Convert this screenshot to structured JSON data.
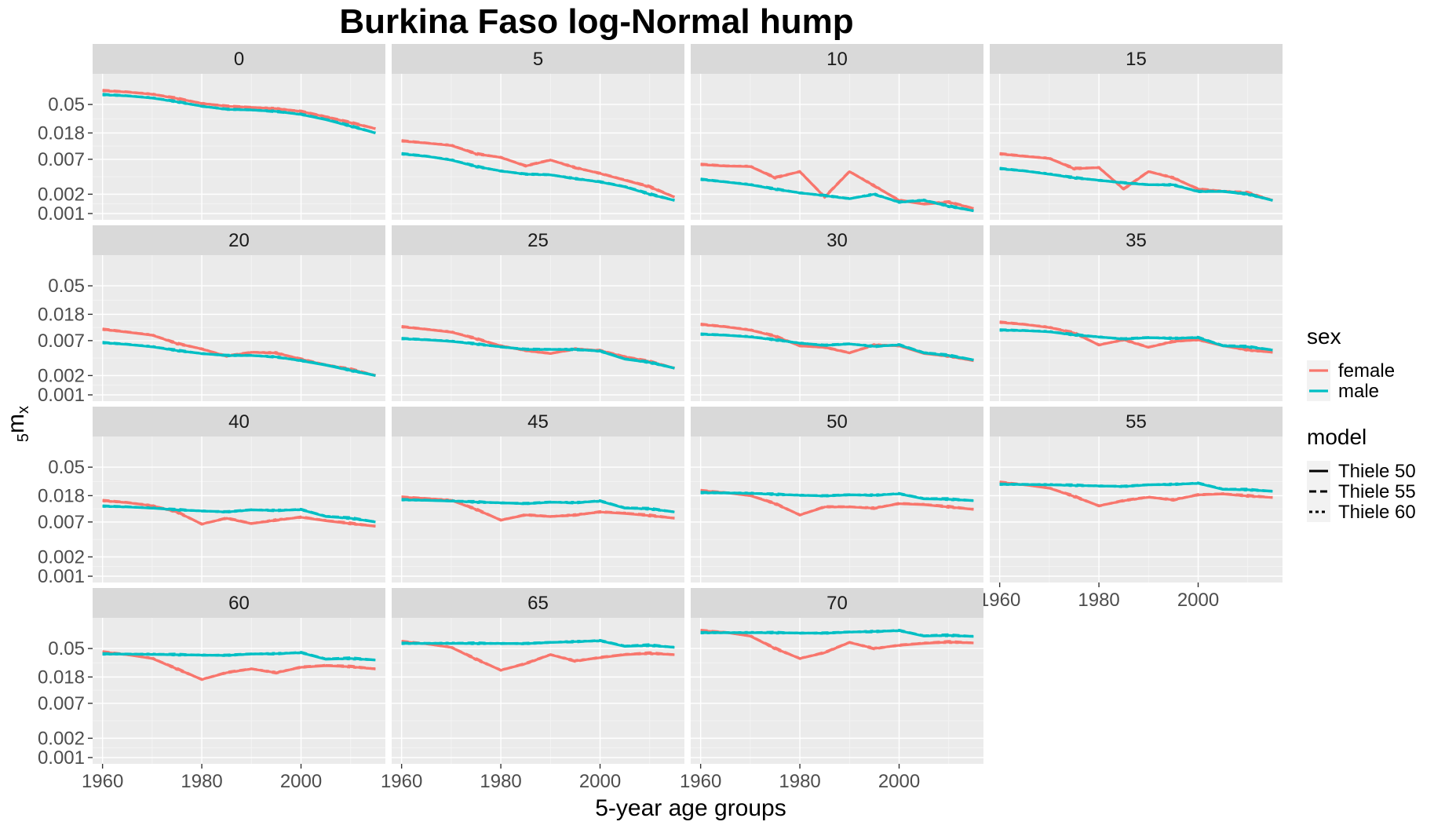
{
  "chart_data": {
    "type": "line",
    "title": "Burkina Faso log-Normal hump",
    "xlabel": "5-year age groups",
    "ylabel": {
      "sub": "5",
      "main": "m",
      "subx": "x"
    },
    "y_scale": "log",
    "ylim": [
      0.001,
      0.12
    ],
    "xlim": [
      1958,
      2017
    ],
    "y_ticks": [
      0.001,
      0.002,
      0.007,
      0.018,
      0.05
    ],
    "y_tick_labels": [
      "0.001",
      "0.002",
      "0.007",
      "0.018",
      "0.05"
    ],
    "x_ticks": [
      1960,
      1980,
      2000
    ],
    "x_tick_labels": [
      "1960",
      "1980",
      "2000"
    ],
    "grid": true,
    "facet_columns": 4,
    "x": [
      1960,
      1965,
      1970,
      1975,
      1980,
      1985,
      1990,
      1995,
      2000,
      2005,
      2010,
      2015
    ],
    "colors": {
      "female": "#F8766D",
      "male": "#00BFC4"
    },
    "legend": {
      "position": "right",
      "sex_title": "sex",
      "sex_entries": [
        "female",
        "male"
      ],
      "model_title": "model",
      "model_entries": [
        "Thiele 50",
        "Thiele 55",
        "Thiele 60"
      ]
    },
    "facets": [
      {
        "label": "0",
        "female": [
          0.082,
          0.078,
          0.072,
          0.062,
          0.052,
          0.047,
          0.045,
          0.043,
          0.039,
          0.032,
          0.026,
          0.021
        ],
        "male": [
          0.071,
          0.068,
          0.063,
          0.055,
          0.047,
          0.042,
          0.041,
          0.039,
          0.035,
          0.029,
          0.023,
          0.018
        ]
      },
      {
        "label": "5",
        "female": [
          0.0135,
          0.0125,
          0.0115,
          0.0085,
          0.0075,
          0.0055,
          0.0068,
          0.0052,
          0.0042,
          0.0033,
          0.0026,
          0.0018
        ],
        "male": [
          0.0085,
          0.0078,
          0.0068,
          0.0054,
          0.0046,
          0.0041,
          0.004,
          0.0035,
          0.0031,
          0.0026,
          0.002,
          0.0016
        ]
      },
      {
        "label": "10",
        "female": [
          0.0058,
          0.0055,
          0.0054,
          0.0036,
          0.0045,
          0.0018,
          0.0045,
          0.0027,
          0.0016,
          0.0014,
          0.0015,
          0.0012
        ],
        "male": [
          0.0034,
          0.0031,
          0.0028,
          0.0024,
          0.0021,
          0.0019,
          0.0017,
          0.002,
          0.0015,
          0.0016,
          0.0013,
          0.0011
        ]
      },
      {
        "label": "15",
        "female": [
          0.0085,
          0.0078,
          0.0072,
          0.005,
          0.0052,
          0.0024,
          0.0045,
          0.0036,
          0.0024,
          0.0022,
          0.0021,
          0.0016
        ],
        "male": [
          0.005,
          0.0046,
          0.0041,
          0.0036,
          0.0033,
          0.003,
          0.0028,
          0.0028,
          0.0022,
          0.0022,
          0.002,
          0.0016
        ]
      },
      {
        "label": "20",
        "female": [
          0.0105,
          0.0095,
          0.0085,
          0.0063,
          0.0052,
          0.004,
          0.0046,
          0.0045,
          0.0036,
          0.0029,
          0.0025,
          0.002
        ],
        "male": [
          0.0065,
          0.0061,
          0.0056,
          0.0049,
          0.0044,
          0.0041,
          0.0041,
          0.0039,
          0.0034,
          0.0029,
          0.0024,
          0.002
        ]
      },
      {
        "label": "25",
        "female": [
          0.0115,
          0.0105,
          0.0095,
          0.0075,
          0.0058,
          0.0049,
          0.0044,
          0.0052,
          0.0049,
          0.0039,
          0.0033,
          0.0026
        ],
        "male": [
          0.0075,
          0.0072,
          0.0068,
          0.0062,
          0.0056,
          0.0051,
          0.0051,
          0.0051,
          0.0048,
          0.0036,
          0.0032,
          0.0026
        ]
      },
      {
        "label": "30",
        "female": [
          0.0125,
          0.0115,
          0.0102,
          0.0082,
          0.0058,
          0.0055,
          0.0045,
          0.006,
          0.0058,
          0.0044,
          0.004,
          0.0034
        ],
        "male": [
          0.0088,
          0.0085,
          0.008,
          0.0072,
          0.0064,
          0.0059,
          0.0062,
          0.0057,
          0.006,
          0.0045,
          0.0041,
          0.0035
        ]
      },
      {
        "label": "35",
        "female": [
          0.0135,
          0.0125,
          0.0112,
          0.0092,
          0.006,
          0.0072,
          0.0055,
          0.0068,
          0.0072,
          0.0058,
          0.005,
          0.0046
        ],
        "male": [
          0.0102,
          0.01,
          0.0096,
          0.0086,
          0.008,
          0.0074,
          0.0078,
          0.0076,
          0.0078,
          0.0058,
          0.0056,
          0.005
        ]
      },
      {
        "label": "40",
        "female": [
          0.015,
          0.014,
          0.0125,
          0.01,
          0.0065,
          0.008,
          0.0066,
          0.0075,
          0.0083,
          0.0073,
          0.0066,
          0.006
        ],
        "male": [
          0.0123,
          0.012,
          0.0115,
          0.0108,
          0.0104,
          0.01,
          0.0108,
          0.0106,
          0.0109,
          0.0085,
          0.008,
          0.007
        ]
      },
      {
        "label": "45",
        "female": [
          0.017,
          0.0162,
          0.0152,
          0.011,
          0.0075,
          0.009,
          0.0085,
          0.009,
          0.01,
          0.0095,
          0.0088,
          0.008
        ],
        "male": [
          0.0155,
          0.0152,
          0.0148,
          0.0143,
          0.0139,
          0.0135,
          0.0142,
          0.014,
          0.0148,
          0.0115,
          0.0112,
          0.01
        ]
      },
      {
        "label": "50",
        "female": [
          0.0215,
          0.02,
          0.018,
          0.0135,
          0.009,
          0.012,
          0.012,
          0.0115,
          0.0135,
          0.013,
          0.012,
          0.011
        ],
        "male": [
          0.02,
          0.0198,
          0.0195,
          0.0188,
          0.0183,
          0.0178,
          0.0185,
          0.0183,
          0.0192,
          0.016,
          0.0158,
          0.015
        ]
      },
      {
        "label": "55",
        "female": [
          0.029,
          0.0265,
          0.0235,
          0.0175,
          0.0125,
          0.015,
          0.017,
          0.0155,
          0.0185,
          0.019,
          0.0178,
          0.0168
        ],
        "male": [
          0.027,
          0.0268,
          0.0265,
          0.026,
          0.0255,
          0.025,
          0.0265,
          0.027,
          0.028,
          0.0225,
          0.0222,
          0.021
        ]
      },
      {
        "label": "60",
        "female": [
          0.044,
          0.04,
          0.035,
          0.024,
          0.0165,
          0.021,
          0.024,
          0.021,
          0.0255,
          0.027,
          0.026,
          0.024
        ],
        "male": [
          0.041,
          0.0408,
          0.0405,
          0.04,
          0.0395,
          0.039,
          0.041,
          0.0415,
          0.043,
          0.034,
          0.035,
          0.033
        ]
      },
      {
        "label": "65",
        "female": [
          0.064,
          0.059,
          0.052,
          0.034,
          0.023,
          0.029,
          0.04,
          0.032,
          0.036,
          0.04,
          0.042,
          0.04
        ],
        "male": [
          0.06,
          0.06,
          0.06,
          0.06,
          0.06,
          0.0595,
          0.062,
          0.064,
          0.066,
          0.054,
          0.056,
          0.052
        ]
      },
      {
        "label": "70",
        "female": [
          0.095,
          0.089,
          0.078,
          0.05,
          0.035,
          0.043,
          0.062,
          0.05,
          0.056,
          0.06,
          0.063,
          0.061
        ],
        "male": [
          0.088,
          0.088,
          0.088,
          0.088,
          0.087,
          0.0865,
          0.09,
          0.092,
          0.095,
          0.078,
          0.08,
          0.077
        ]
      }
    ]
  }
}
